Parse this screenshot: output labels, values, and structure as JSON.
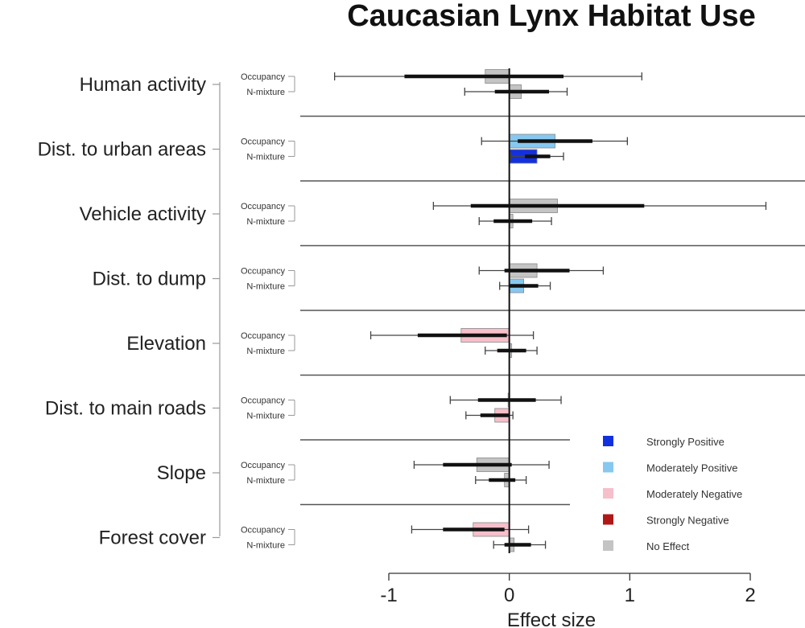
{
  "chart_data": {
    "type": "bar",
    "orientation": "horizontal",
    "title": "Caucasian Lynx Habitat Use",
    "xlabel": "Effect size",
    "xlim": [
      -1,
      2
    ],
    "xticks": [
      "-1",
      "0",
      "1",
      "2"
    ],
    "models": [
      "Occupancy",
      "N-mixture"
    ],
    "covariates": [
      {
        "name": "Human activity",
        "bars": [
          {
            "model": "Occupancy",
            "value": -0.2,
            "ci50": [
              -0.87,
              0.45
            ],
            "ci95": [
              -1.45,
              1.1
            ],
            "category": "No Effect"
          },
          {
            "model": "N-mixture",
            "value": 0.1,
            "ci50": [
              -0.12,
              0.33
            ],
            "ci95": [
              -0.37,
              0.48
            ],
            "category": "No Effect"
          }
        ]
      },
      {
        "name": "Dist. to urban areas",
        "bars": [
          {
            "model": "Occupancy",
            "value": 0.38,
            "ci50": [
              0.07,
              0.69
            ],
            "ci95": [
              -0.23,
              0.98
            ],
            "category": "Moderately Positive"
          },
          {
            "model": "N-mixture",
            "value": 0.23,
            "ci50": [
              0.13,
              0.34
            ],
            "ci95": [
              0.01,
              0.45
            ],
            "category": "Strongly Positive"
          }
        ]
      },
      {
        "name": "Vehicle activity",
        "bars": [
          {
            "model": "Occupancy",
            "value": 0.4,
            "ci50": [
              -0.32,
              1.12
            ],
            "ci95": [
              -0.63,
              2.13
            ],
            "category": "No Effect"
          },
          {
            "model": "N-mixture",
            "value": 0.03,
            "ci50": [
              -0.13,
              0.19
            ],
            "ci95": [
              -0.25,
              0.35
            ],
            "category": "No Effect"
          }
        ]
      },
      {
        "name": "Dist. to dump",
        "bars": [
          {
            "model": "Occupancy",
            "value": 0.23,
            "ci50": [
              -0.04,
              0.5
            ],
            "ci95": [
              -0.25,
              0.78
            ],
            "category": "No Effect"
          },
          {
            "model": "N-mixture",
            "value": 0.12,
            "ci50": [
              0.0,
              0.24
            ],
            "ci95": [
              -0.08,
              0.34
            ],
            "category": "Moderately Positive"
          }
        ]
      },
      {
        "name": "Elevation",
        "bars": [
          {
            "model": "Occupancy",
            "value": -0.4,
            "ci50": [
              -0.76,
              -0.02
            ],
            "ci95": [
              -1.15,
              0.2
            ],
            "category": "Moderately Negative"
          },
          {
            "model": "N-mixture",
            "value": 0.02,
            "ci50": [
              -0.1,
              0.14
            ],
            "ci95": [
              -0.2,
              0.23
            ],
            "category": "No Effect"
          }
        ]
      },
      {
        "name": "Dist. to main roads",
        "bars": [
          {
            "model": "Occupancy",
            "value": -0.01,
            "ci50": [
              -0.26,
              0.22
            ],
            "ci95": [
              -0.49,
              0.43
            ],
            "category": "No Effect"
          },
          {
            "model": "N-mixture",
            "value": -0.12,
            "ci50": [
              -0.24,
              0.0
            ],
            "ci95": [
              -0.36,
              0.03
            ],
            "category": "Moderately Negative"
          }
        ]
      },
      {
        "name": "Slope",
        "bars": [
          {
            "model": "Occupancy",
            "value": -0.27,
            "ci50": [
              -0.55,
              0.02
            ],
            "ci95": [
              -0.79,
              0.33
            ],
            "category": "No Effect"
          },
          {
            "model": "N-mixture",
            "value": -0.04,
            "ci50": [
              -0.17,
              0.05
            ],
            "ci95": [
              -0.28,
              0.14
            ],
            "category": "No Effect"
          }
        ]
      },
      {
        "name": "Forest cover",
        "bars": [
          {
            "model": "Occupancy",
            "value": -0.3,
            "ci50": [
              -0.55,
              -0.04
            ],
            "ci95": [
              -0.81,
              0.16
            ],
            "category": "Moderately Negative"
          },
          {
            "model": "N-mixture",
            "value": 0.04,
            "ci50": [
              -0.04,
              0.18
            ],
            "ci95": [
              -0.13,
              0.3
            ],
            "category": "No Effect"
          }
        ]
      }
    ],
    "legend": {
      "position": "bottom-right",
      "items": [
        {
          "label": "Strongly Positive",
          "color": "#1330e0"
        },
        {
          "label": "Moderately Positive",
          "color": "#86c8f0"
        },
        {
          "label": "Moderately Negative",
          "color": "#f6bfc9"
        },
        {
          "label": "Strongly Negative",
          "color": "#b01818"
        },
        {
          "label": "No Effect",
          "color": "#c4c4c4"
        }
      ]
    },
    "grid": false
  }
}
